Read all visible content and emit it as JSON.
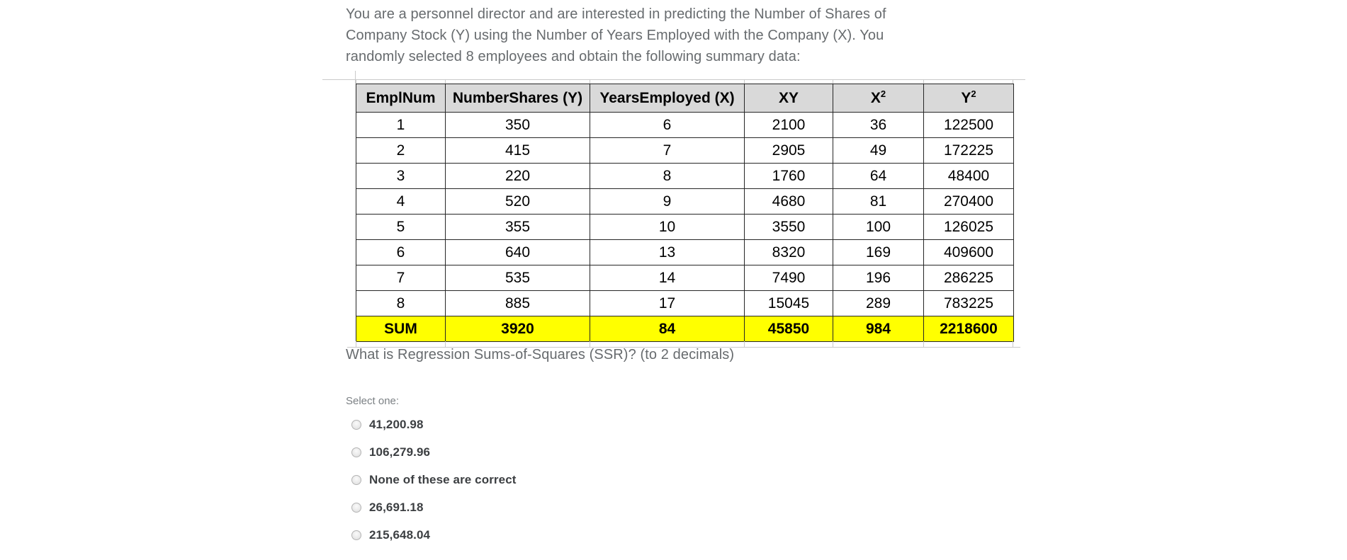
{
  "question": {
    "intro_lines": [
      "You are a personnel director and are interested in predicting the Number of Shares of",
      "Company Stock (Y) using the Number of Years Employed with the Company (X). You",
      "randomly selected 8 employees and obtain the following summary data:"
    ],
    "prompt": "What is Regression Sums-of-Squares (SSR)? (to 2 decimals)"
  },
  "table": {
    "headers": [
      "EmplNum",
      "NumberShares (Y)",
      "YearsEmployed (X)",
      "XY",
      "X²",
      "Y²"
    ],
    "rows": [
      [
        "1",
        "350",
        "6",
        "2100",
        "36",
        "122500"
      ],
      [
        "2",
        "415",
        "7",
        "2905",
        "49",
        "172225"
      ],
      [
        "3",
        "220",
        "8",
        "1760",
        "64",
        "48400"
      ],
      [
        "4",
        "520",
        "9",
        "4680",
        "81",
        "270400"
      ],
      [
        "5",
        "355",
        "10",
        "3550",
        "100",
        "126025"
      ],
      [
        "6",
        "640",
        "13",
        "8320",
        "169",
        "409600"
      ],
      [
        "7",
        "535",
        "14",
        "7490",
        "196",
        "286225"
      ],
      [
        "8",
        "885",
        "17",
        "15045",
        "289",
        "783225"
      ]
    ],
    "sum_row": [
      "SUM",
      "3920",
      "84",
      "45850",
      "984",
      "2218600"
    ],
    "colors": {
      "header_bg": "#d9d9d9",
      "sum_bg": "#ffff00",
      "border": "#262626"
    }
  },
  "answer": {
    "select_label": "Select one:",
    "options": [
      "41,200.98",
      "106,279.96",
      "None of these are correct",
      "26,691.18",
      "215,648.04"
    ]
  }
}
